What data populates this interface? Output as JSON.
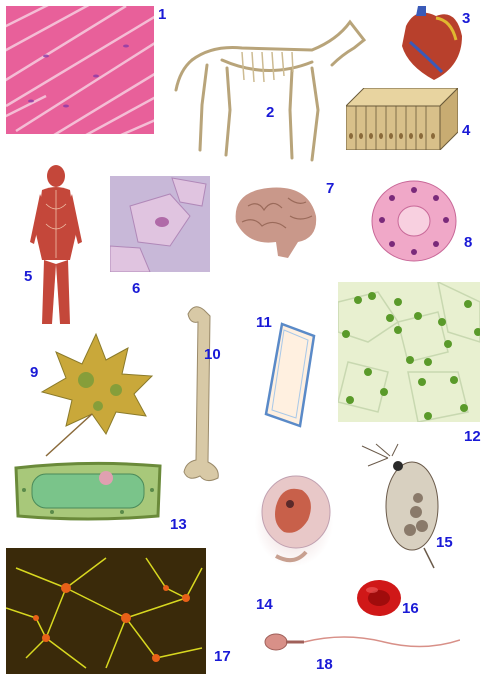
{
  "labels": [
    "1",
    "2",
    "3",
    "4",
    "5",
    "6",
    "7",
    "8",
    "9",
    "10",
    "11",
    "12",
    "13",
    "14",
    "15",
    "16",
    "17",
    "18"
  ],
  "colors": {
    "number_label": "#1a1ad6",
    "muscle_tissue": "#e8609a",
    "bone": "#d8c9a6",
    "heart": "#b8402c",
    "epithelium": "#d8c08a",
    "human_muscle": "#c4473a",
    "cheek_cells": "#d6a6cc",
    "brain": "#c9988a",
    "cell_ring": "#f0a8c8",
    "leaf": "#c9a83a",
    "plant_cell": "#a8c87a",
    "chloroplasts": "#5a9a2a",
    "algae_cell": "#7ac48a",
    "embryo": "#c8604a",
    "daphnia": "#8a7a6a",
    "red_blood_cell": "#d01818",
    "neurons": "#d8d820",
    "sperm": "#d89088"
  }
}
